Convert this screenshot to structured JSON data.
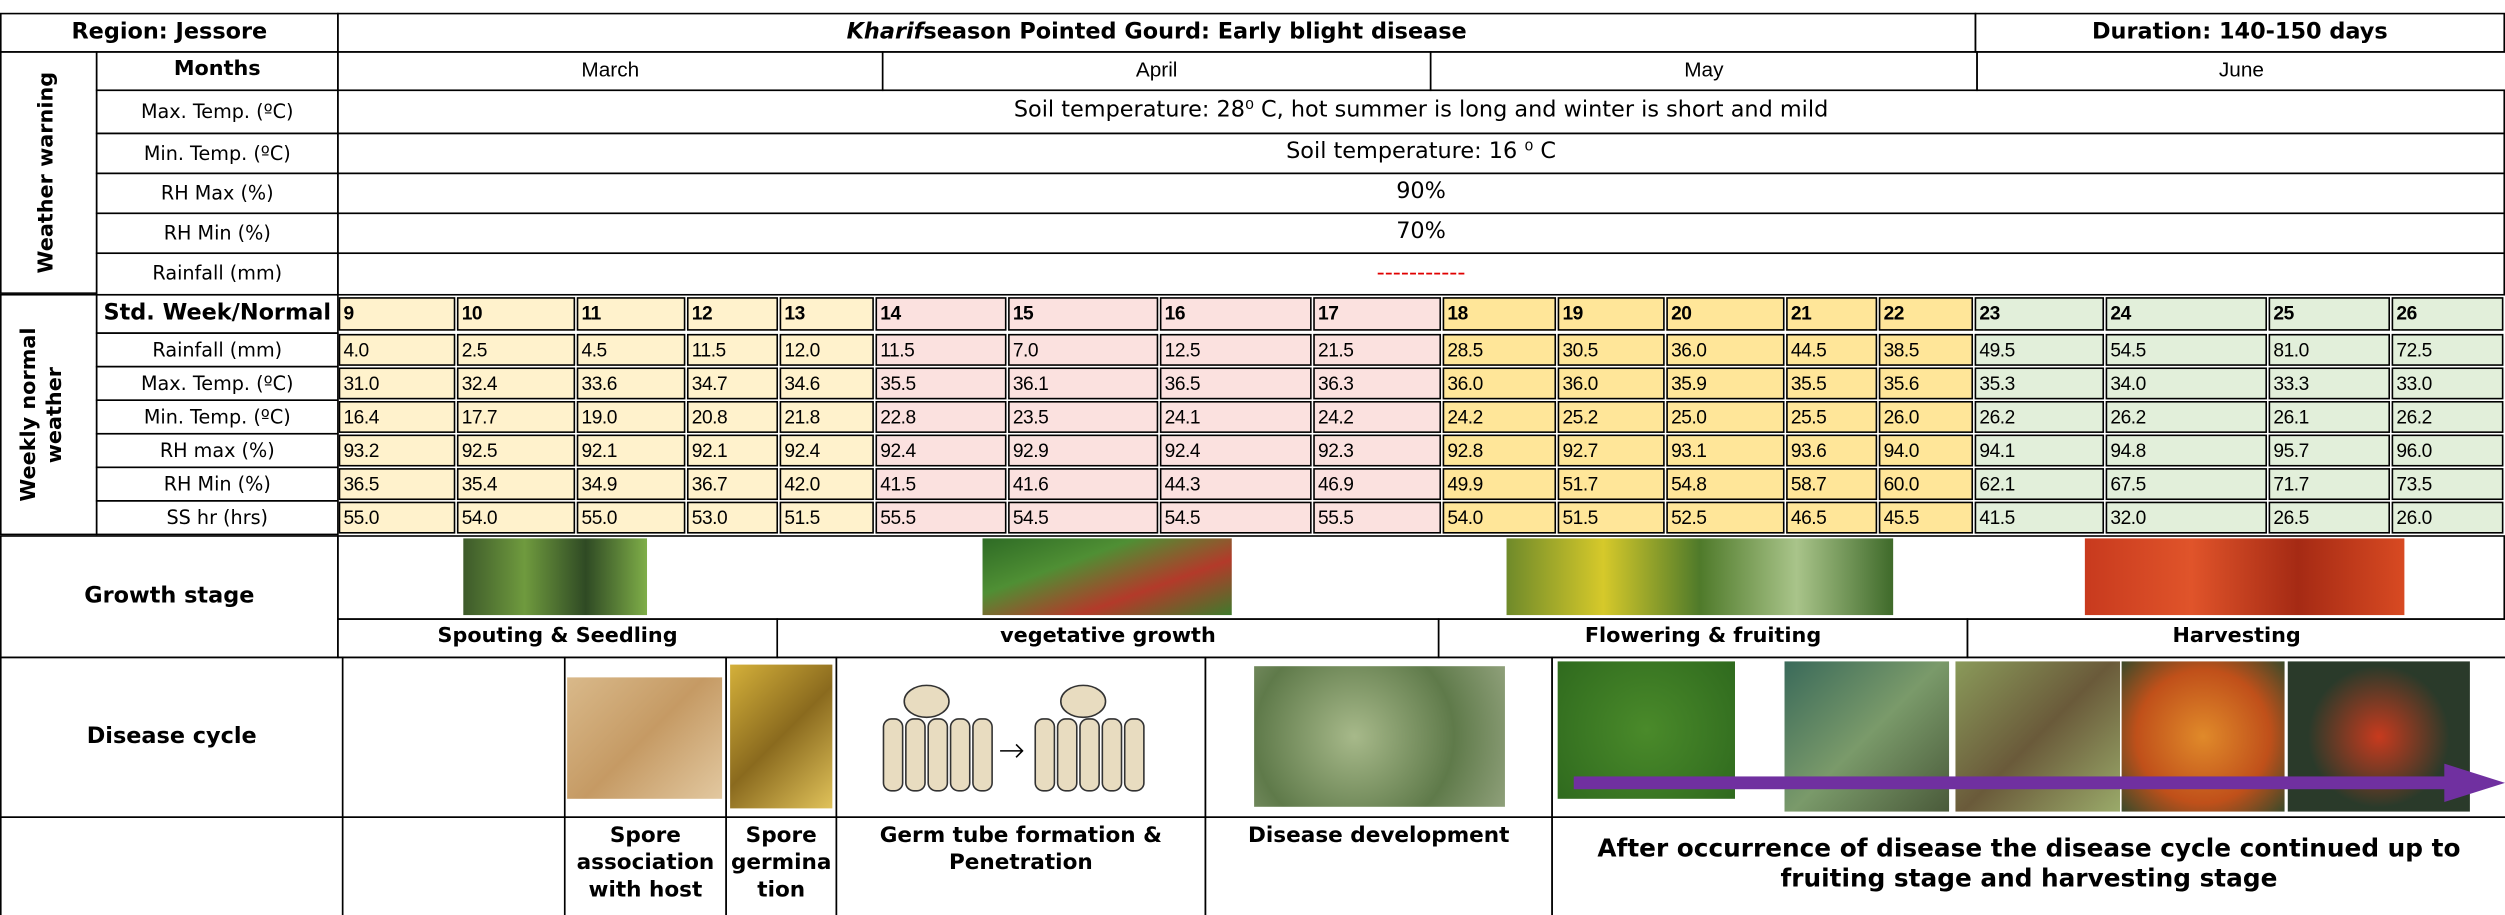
{
  "header": {
    "region": "Region: Jessore",
    "title_italic": "Kharif",
    "title_rest": "season Pointed Gourd: Early blight disease",
    "duration": "Duration: 140-150 days"
  },
  "weather_warning": {
    "label": "Weather warning",
    "months_label": "Months",
    "months": [
      "March",
      "April",
      "May",
      "June"
    ],
    "rows": [
      {
        "label": "Max. Temp. (ºC)",
        "value": "Soil temperature: 28⁰ C, hot summer is long and winter is short and mild"
      },
      {
        "label": "Min. Temp. (ºC)",
        "value": "Soil temperature: 16 ⁰ C"
      },
      {
        "label": "RH Max (%)",
        "value": "90%"
      },
      {
        "label": "RH Min (%)",
        "value": "70%"
      },
      {
        "label": "Rainfall (mm)",
        "value": "-----------"
      }
    ]
  },
  "weekly": {
    "label": "Weekly normal weather",
    "header_label": "Std. Week/Normal",
    "weeks": [
      9,
      10,
      11,
      12,
      13,
      14,
      15,
      16,
      17,
      18,
      19,
      20,
      21,
      22,
      23,
      24,
      25,
      26
    ],
    "rows": [
      {
        "label": "Rainfall (mm)",
        "values": [
          "4.0",
          "2.5",
          "4.5",
          "11.5",
          "12.0",
          "11.5",
          "7.0",
          "12.5",
          "21.5",
          "28.5",
          "30.5",
          "36.0",
          "44.5",
          "38.5",
          "49.5",
          "54.5",
          "81.0",
          "72.5"
        ]
      },
      {
        "label": "Max. Temp. (ºC)",
        "values": [
          "31.0",
          "32.4",
          "33.6",
          "34.7",
          "34.6",
          "35.5",
          "36.1",
          "36.5",
          "36.3",
          "36.0",
          "36.0",
          "35.9",
          "35.5",
          "35.6",
          "35.3",
          "34.0",
          "33.3",
          "33.0"
        ]
      },
      {
        "label": "Min. Temp. (ºC)",
        "values": [
          "16.4",
          "17.7",
          "19.0",
          "20.8",
          "21.8",
          "22.8",
          "23.5",
          "24.1",
          "24.2",
          "24.2",
          "25.2",
          "25.0",
          "25.5",
          "26.0",
          "26.2",
          "26.2",
          "26.1",
          "26.2"
        ]
      },
      {
        "label": "RH max (%)",
        "values": [
          "93.2",
          "92.5",
          "92.1",
          "92.1",
          "92.4",
          "92.4",
          "92.9",
          "92.4",
          "92.3",
          "92.8",
          "92.7",
          "93.1",
          "93.6",
          "94.0",
          "94.1",
          "94.8",
          "95.7",
          "96.0"
        ]
      },
      {
        "label": "RH Min (%)",
        "values": [
          "36.5",
          "35.4",
          "34.9",
          "36.7",
          "42.0",
          "41.5",
          "41.6",
          "44.3",
          "46.9",
          "49.9",
          "51.7",
          "54.8",
          "58.7",
          "60.0",
          "62.1",
          "67.5",
          "71.7",
          "73.5"
        ]
      },
      {
        "label": "SS hr (hrs)",
        "values": [
          "55.0",
          "54.0",
          "55.0",
          "53.0",
          "51.5",
          "55.5",
          "54.5",
          "54.5",
          "55.5",
          "54.0",
          "51.5",
          "52.5",
          "46.5",
          "45.5",
          "41.5",
          "32.0",
          "26.5",
          "26.0"
        ]
      }
    ]
  },
  "growth": {
    "label": "Growth stage",
    "stages": [
      "Spouting & Seedling",
      "vegetative growth",
      "Flowering & fruiting",
      "Harvesting"
    ]
  },
  "disease": {
    "label": "Disease cycle",
    "steps": [
      "Spore association with host",
      "Spore germina tion",
      "Germ tube formation & Penetration",
      "Disease development",
      "After occurrence of disease the disease cycle continued up to fruiting stage and harvesting stage"
    ]
  }
}
